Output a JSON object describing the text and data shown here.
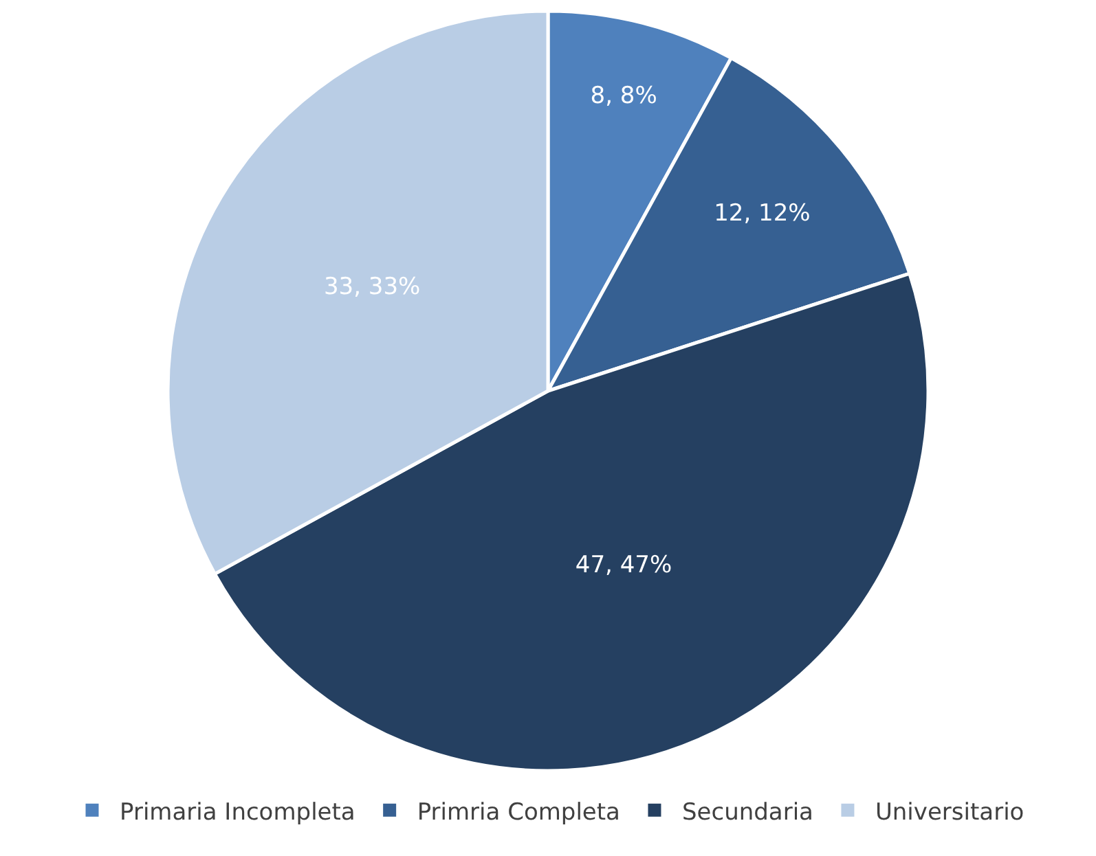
{
  "chart_data": {
    "type": "pie",
    "categories": [
      "Primaria Incompleta",
      "Primria Completa",
      "Secundaria",
      "Universitario"
    ],
    "values": [
      8,
      12,
      47,
      33
    ],
    "colors": [
      "#4f81bd",
      "#366092",
      "#254061",
      "#b9cde5"
    ],
    "value_labels": [
      "8, 8%",
      "12, 12%",
      "47, 47%",
      "33, 33%"
    ],
    "legend": "bottom"
  }
}
